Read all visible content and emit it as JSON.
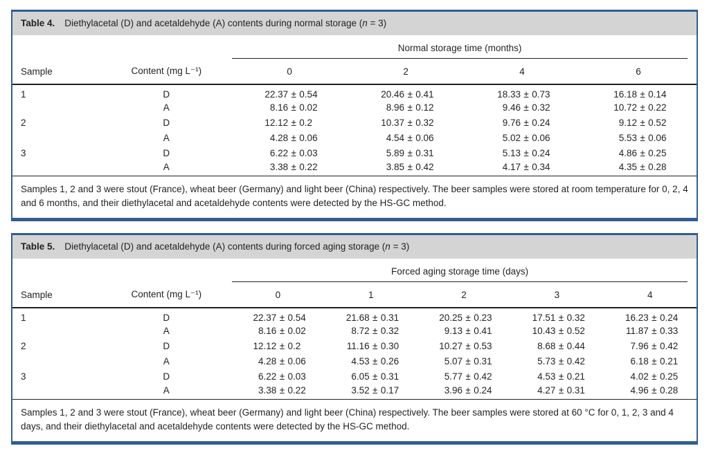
{
  "tables": [
    {
      "caption_label": "Table 4.",
      "caption_pre": "Diethylacetal (D) and acetaldehyde (A) contents during normal storage (",
      "caption_italic": "n",
      "caption_post": " = 3)",
      "time_header": "Normal storage time (months)",
      "col_sample": "Sample",
      "col_content": "Content (mg L⁻¹)",
      "time_cols": [
        "0",
        "2",
        "4",
        "6"
      ],
      "rows": [
        {
          "sample": "1",
          "content": "D",
          "values": [
            "22.37 ± 0.54",
            "20.46 ± 0.41",
            "18.33 ± 0.73",
            "16.18 ± 0.14"
          ]
        },
        {
          "sample": "",
          "content": "A",
          "values": [
            "8.16 ± 0.02",
            "8.96 ± 0.12",
            "9.46 ± 0.32",
            "10.72 ± 0.22"
          ]
        },
        {
          "sample": "2",
          "content": "D",
          "values": [
            "12.12 ± 0.2",
            "10.37 ± 0.32",
            "9.76 ± 0.24",
            "9.12 ± 0.52"
          ]
        },
        {
          "sample": "",
          "content": "A",
          "values": [
            "4.28 ± 0.06",
            "4.54 ± 0.06",
            "5.02 ± 0.06",
            "5.53 ± 0.06"
          ]
        },
        {
          "sample": "3",
          "content": "D",
          "values": [
            "6.22 ± 0.03",
            "5.89 ± 0.31",
            "5.13 ± 0.24",
            "4.86 ± 0.25"
          ]
        },
        {
          "sample": "",
          "content": "A",
          "values": [
            "3.38 ± 0.22",
            "3.85 ± 0.42",
            "4.17 ± 0.34",
            "4.35 ± 0.28"
          ]
        }
      ],
      "footnote": "Samples 1, 2 and 3 were stout (France), wheat beer (Germany) and light beer (China) respectively. The beer samples were stored at room temperature for 0, 2, 4 and 6 months, and their diethylacetal and acetaldehyde contents were detected by the HS-GC method."
    },
    {
      "caption_label": "Table 5.",
      "caption_pre": "Diethylacetal (D) and acetaldehyde (A) contents during forced aging storage (",
      "caption_italic": "n",
      "caption_post": " = 3)",
      "time_header": "Forced aging storage time (days)",
      "col_sample": "Sample",
      "col_content": "Content (mg L⁻¹)",
      "time_cols": [
        "0",
        "1",
        "2",
        "3",
        "4"
      ],
      "rows": [
        {
          "sample": "1",
          "content": "D",
          "values": [
            "22.37 ± 0.54",
            "21.68 ± 0.31",
            "20.25 ± 0.23",
            "17.51 ± 0.32",
            "16.23 ± 0.24"
          ]
        },
        {
          "sample": "",
          "content": "A",
          "values": [
            "8.16 ± 0.02",
            "8.72 ± 0.32",
            "9.13 ± 0.41",
            "10.43 ± 0.52",
            "11.87 ± 0.33"
          ]
        },
        {
          "sample": "2",
          "content": "D",
          "values": [
            "12.12 ± 0.2",
            "11.16 ± 0.30",
            "10.27 ± 0.53",
            "8.68 ± 0.44",
            "7.96 ± 0.42"
          ]
        },
        {
          "sample": "",
          "content": "A",
          "values": [
            "4.28 ± 0.06",
            "4.53 ± 0.26",
            "5.07 ± 0.31",
            "5.73 ± 0.42",
            "6.18 ± 0.21"
          ]
        },
        {
          "sample": "3",
          "content": "D",
          "values": [
            "6.22 ± 0.03",
            "6.05 ± 0.31",
            "5.77 ± 0.42",
            "4.53 ± 0.21",
            "4.02 ± 0.25"
          ]
        },
        {
          "sample": "",
          "content": "A",
          "values": [
            "3.38 ± 0.22",
            "3.52 ± 0.17",
            "3.96 ± 0.24",
            "4.27 ± 0.31",
            "4.96 ± 0.28"
          ]
        }
      ],
      "footnote": "Samples 1, 2 and 3 were stout (France), wheat beer (Germany) and light beer (China) respectively. The beer samples were stored at 60 °C for 0, 1, 2, 3 and 4 days, and their diethylacetal and acetaldehyde contents were detected by the HS-GC method."
    }
  ],
  "colors": {
    "border_blue": "#2e5d94",
    "caption_gray": "#d4d4d4",
    "rule_dark": "#231f20",
    "text": "#231f20"
  }
}
